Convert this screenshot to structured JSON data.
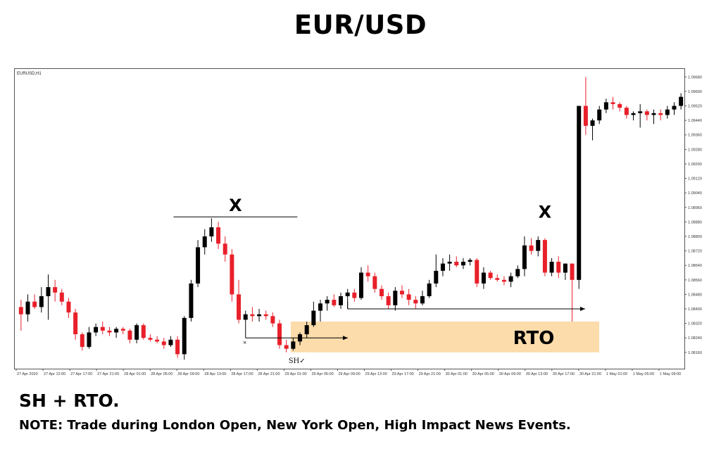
{
  "page": {
    "title": "EUR/USD",
    "heading": "SH + RTO.",
    "note": "NOTE: Trade during London Open, New York Open, High Impact News Events."
  },
  "chart_data": {
    "type": "candlestick",
    "symbol_label": "EURUSD,H1",
    "colors": {
      "bull": "#000000",
      "bear": "#e8202a",
      "zone": "#fbdcaa",
      "frame": "#555555"
    },
    "ylim": [
      1.0807,
      1.0972
    ],
    "y_ticks": [
      "1.09680",
      "1.09600",
      "1.09520",
      "1.09440",
      "1.09360",
      "1.09280",
      "1.09200",
      "1.09120",
      "1.09040",
      "1.08960",
      "1.08880",
      "1.08800",
      "1.08720",
      "1.08640",
      "1.08560",
      "1.08480",
      "1.08400",
      "1.08320",
      "1.08240",
      "1.08160"
    ],
    "x_ticks": [
      "27 Apr 2020",
      "27 Apr 12:00",
      "27 Apr 17:00",
      "27 Apr 21:00",
      "28 Apr 01:00",
      "28 Apr 05:00",
      "28 Apr 09:00",
      "28 Apr 13:00",
      "28 Apr 17:00",
      "28 Apr 21:00",
      "29 Apr 01:00",
      "29 Apr 05:00",
      "29 Apr 09:00",
      "29 Apr 13:00",
      "29 Apr 17:00",
      "29 Apr 21:00",
      "30 Apr 01:00",
      "30 Apr 05:00",
      "30 Apr 09:00",
      "30 Apr 13:00",
      "30 Apr 17:00",
      "30 Apr 21:00",
      "1 May 01:00",
      "1 May 05:00",
      "1 May 09:00"
    ],
    "candles": [
      {
        "o": 1.0841,
        "h": 1.0845,
        "l": 1.0828,
        "c": 1.0837
      },
      {
        "o": 1.0837,
        "h": 1.0848,
        "l": 1.0833,
        "c": 1.0844
      },
      {
        "o": 1.0844,
        "h": 1.0848,
        "l": 1.084,
        "c": 1.0841
      },
      {
        "o": 1.0841,
        "h": 1.0852,
        "l": 1.0838,
        "c": 1.0847
      },
      {
        "o": 1.0847,
        "h": 1.0859,
        "l": 1.0834,
        "c": 1.0852
      },
      {
        "o": 1.0852,
        "h": 1.0856,
        "l": 1.0844,
        "c": 1.0849
      },
      {
        "o": 1.0849,
        "h": 1.0851,
        "l": 1.0842,
        "c": 1.0844
      },
      {
        "o": 1.0844,
        "h": 1.0846,
        "l": 1.0835,
        "c": 1.0838
      },
      {
        "o": 1.0838,
        "h": 1.084,
        "l": 1.0823,
        "c": 1.0826
      },
      {
        "o": 1.0826,
        "h": 1.0827,
        "l": 1.0817,
        "c": 1.0819
      },
      {
        "o": 1.0819,
        "h": 1.083,
        "l": 1.0818,
        "c": 1.0827
      },
      {
        "o": 1.0827,
        "h": 1.0832,
        "l": 1.0825,
        "c": 1.083
      },
      {
        "o": 1.083,
        "h": 1.0833,
        "l": 1.0826,
        "c": 1.0828
      },
      {
        "o": 1.0828,
        "h": 1.083,
        "l": 1.0825,
        "c": 1.0827
      },
      {
        "o": 1.0827,
        "h": 1.083,
        "l": 1.0824,
        "c": 1.0829
      },
      {
        "o": 1.0829,
        "h": 1.083,
        "l": 1.0826,
        "c": 1.0828
      },
      {
        "o": 1.0828,
        "h": 1.0829,
        "l": 1.0821,
        "c": 1.0823
      },
      {
        "o": 1.0823,
        "h": 1.0832,
        "l": 1.0821,
        "c": 1.0831
      },
      {
        "o": 1.0831,
        "h": 1.0832,
        "l": 1.0823,
        "c": 1.0824
      },
      {
        "o": 1.0824,
        "h": 1.0826,
        "l": 1.0822,
        "c": 1.0823
      },
      {
        "o": 1.0823,
        "h": 1.0825,
        "l": 1.0821,
        "c": 1.0822
      },
      {
        "o": 1.0822,
        "h": 1.0824,
        "l": 1.0818,
        "c": 1.082
      },
      {
        "o": 1.082,
        "h": 1.0825,
        "l": 1.0819,
        "c": 1.0823
      },
      {
        "o": 1.0823,
        "h": 1.0825,
        "l": 1.0813,
        "c": 1.0815
      },
      {
        "o": 1.0815,
        "h": 1.0836,
        "l": 1.0812,
        "c": 1.0835
      },
      {
        "o": 1.0835,
        "h": 1.0856,
        "l": 1.0833,
        "c": 1.0854
      },
      {
        "o": 1.0854,
        "h": 1.0878,
        "l": 1.0852,
        "c": 1.0874
      },
      {
        "o": 1.0874,
        "h": 1.0884,
        "l": 1.087,
        "c": 1.088
      },
      {
        "o": 1.088,
        "h": 1.089,
        "l": 1.0877,
        "c": 1.0885
      },
      {
        "o": 1.0885,
        "h": 1.0888,
        "l": 1.0873,
        "c": 1.0876
      },
      {
        "o": 1.0876,
        "h": 1.088,
        "l": 1.0866,
        "c": 1.087
      },
      {
        "o": 1.087,
        "h": 1.0873,
        "l": 1.0844,
        "c": 1.0848
      },
      {
        "o": 1.0848,
        "h": 1.0856,
        "l": 1.0832,
        "c": 1.0834
      },
      {
        "o": 1.0834,
        "h": 1.0839,
        "l": 1.0832,
        "c": 1.0837
      },
      {
        "o": 1.0837,
        "h": 1.0841,
        "l": 1.0833,
        "c": 1.0836
      },
      {
        "o": 1.0836,
        "h": 1.084,
        "l": 1.0833,
        "c": 1.0837
      },
      {
        "o": 1.0837,
        "h": 1.0839,
        "l": 1.0834,
        "c": 1.0836
      },
      {
        "o": 1.0836,
        "h": 1.0838,
        "l": 1.083,
        "c": 1.0832
      },
      {
        "o": 1.0832,
        "h": 1.0834,
        "l": 1.0818,
        "c": 1.082
      },
      {
        "o": 1.082,
        "h": 1.0823,
        "l": 1.0816,
        "c": 1.0818
      },
      {
        "o": 1.0818,
        "h": 1.0824,
        "l": 1.0817,
        "c": 1.0822
      },
      {
        "o": 1.0822,
        "h": 1.0827,
        "l": 1.082,
        "c": 1.0826
      },
      {
        "o": 1.0826,
        "h": 1.0833,
        "l": 1.0824,
        "c": 1.0831
      },
      {
        "o": 1.0831,
        "h": 1.0844,
        "l": 1.083,
        "c": 1.0839
      },
      {
        "o": 1.0839,
        "h": 1.0845,
        "l": 1.0833,
        "c": 1.0843
      },
      {
        "o": 1.0843,
        "h": 1.0847,
        "l": 1.0839,
        "c": 1.0845
      },
      {
        "o": 1.0845,
        "h": 1.0848,
        "l": 1.0841,
        "c": 1.0842
      },
      {
        "o": 1.0842,
        "h": 1.0849,
        "l": 1.084,
        "c": 1.0847
      },
      {
        "o": 1.0847,
        "h": 1.0851,
        "l": 1.084,
        "c": 1.0849
      },
      {
        "o": 1.0849,
        "h": 1.0851,
        "l": 1.0844,
        "c": 1.0846
      },
      {
        "o": 1.0846,
        "h": 1.0863,
        "l": 1.0845,
        "c": 1.086
      },
      {
        "o": 1.086,
        "h": 1.0864,
        "l": 1.0855,
        "c": 1.0858
      },
      {
        "o": 1.0858,
        "h": 1.086,
        "l": 1.0849,
        "c": 1.0851
      },
      {
        "o": 1.0851,
        "h": 1.0853,
        "l": 1.0845,
        "c": 1.0847
      },
      {
        "o": 1.0847,
        "h": 1.0849,
        "l": 1.084,
        "c": 1.0842
      },
      {
        "o": 1.0842,
        "h": 1.0852,
        "l": 1.0839,
        "c": 1.085
      },
      {
        "o": 1.085,
        "h": 1.0853,
        "l": 1.0846,
        "c": 1.0848
      },
      {
        "o": 1.0848,
        "h": 1.0851,
        "l": 1.0842,
        "c": 1.0845
      },
      {
        "o": 1.0845,
        "h": 1.0847,
        "l": 1.084,
        "c": 1.0843
      },
      {
        "o": 1.0843,
        "h": 1.085,
        "l": 1.0842,
        "c": 1.0847
      },
      {
        "o": 1.0847,
        "h": 1.0856,
        "l": 1.0846,
        "c": 1.0854
      },
      {
        "o": 1.0854,
        "h": 1.087,
        "l": 1.0852,
        "c": 1.0861
      },
      {
        "o": 1.0861,
        "h": 1.0868,
        "l": 1.0858,
        "c": 1.0865
      },
      {
        "o": 1.0865,
        "h": 1.087,
        "l": 1.0861,
        "c": 1.0866
      },
      {
        "o": 1.0866,
        "h": 1.0869,
        "l": 1.0863,
        "c": 1.0864
      },
      {
        "o": 1.0864,
        "h": 1.0868,
        "l": 1.0862,
        "c": 1.0866
      },
      {
        "o": 1.0866,
        "h": 1.0868,
        "l": 1.0864,
        "c": 1.0867
      },
      {
        "o": 1.0867,
        "h": 1.0868,
        "l": 1.0852,
        "c": 1.0854
      },
      {
        "o": 1.0854,
        "h": 1.0863,
        "l": 1.0851,
        "c": 1.086
      },
      {
        "o": 1.086,
        "h": 1.0861,
        "l": 1.0856,
        "c": 1.0857
      },
      {
        "o": 1.0857,
        "h": 1.0859,
        "l": 1.0855,
        "c": 1.0856
      },
      {
        "o": 1.0856,
        "h": 1.0858,
        "l": 1.0853,
        "c": 1.0855
      },
      {
        "o": 1.0855,
        "h": 1.086,
        "l": 1.0852,
        "c": 1.0858
      },
      {
        "o": 1.0858,
        "h": 1.0864,
        "l": 1.0857,
        "c": 1.0862
      },
      {
        "o": 1.0862,
        "h": 1.088,
        "l": 1.0858,
        "c": 1.0875
      },
      {
        "o": 1.0875,
        "h": 1.0879,
        "l": 1.087,
        "c": 1.0872
      },
      {
        "o": 1.0872,
        "h": 1.088,
        "l": 1.0869,
        "c": 1.0878
      },
      {
        "o": 1.0878,
        "h": 1.0879,
        "l": 1.0858,
        "c": 1.086
      },
      {
        "o": 1.086,
        "h": 1.0868,
        "l": 1.0858,
        "c": 1.0866
      },
      {
        "o": 1.0866,
        "h": 1.0869,
        "l": 1.0857,
        "c": 1.086
      },
      {
        "o": 1.086,
        "h": 1.0865,
        "l": 1.0856,
        "c": 1.0865
      },
      {
        "o": 1.0865,
        "h": 1.0865,
        "l": 1.0833,
        "c": 1.0856
      },
      {
        "o": 1.0856,
        "h": 1.0952,
        "l": 1.0851,
        "c": 1.0952
      },
      {
        "o": 1.0952,
        "h": 1.0968,
        "l": 1.0936,
        "c": 1.0941
      },
      {
        "o": 1.0941,
        "h": 1.0945,
        "l": 1.0933,
        "c": 1.0944
      },
      {
        "o": 1.0944,
        "h": 1.0952,
        "l": 1.0942,
        "c": 1.095
      },
      {
        "o": 1.095,
        "h": 1.0956,
        "l": 1.0948,
        "c": 1.0954
      },
      {
        "o": 1.0954,
        "h": 1.0957,
        "l": 1.095,
        "c": 1.0953
      },
      {
        "o": 1.0953,
        "h": 1.0954,
        "l": 1.0949,
        "c": 1.0951
      },
      {
        "o": 1.0951,
        "h": 1.0952,
        "l": 1.0945,
        "c": 1.0947
      },
      {
        "o": 1.0947,
        "h": 1.0949,
        "l": 1.0944,
        "c": 1.0948
      },
      {
        "o": 1.0948,
        "h": 1.0953,
        "l": 1.094,
        "c": 1.0949
      },
      {
        "o": 1.0949,
        "h": 1.095,
        "l": 1.0944,
        "c": 1.0947
      },
      {
        "o": 1.0947,
        "h": 1.095,
        "l": 1.0942,
        "c": 1.0948
      },
      {
        "o": 1.0948,
        "h": 1.095,
        "l": 1.0944,
        "c": 1.0947
      },
      {
        "o": 1.0947,
        "h": 1.0952,
        "l": 1.0945,
        "c": 1.095
      },
      {
        "o": 1.095,
        "h": 1.0954,
        "l": 1.0947,
        "c": 1.0952
      },
      {
        "o": 1.0952,
        "h": 1.0959,
        "l": 1.095,
        "c": 1.0957
      }
    ],
    "annotations": {
      "x_left": {
        "label": "X",
        "price": 1.089
      },
      "x_right": {
        "label": "X",
        "price": 1.0884
      },
      "rto_zone": {
        "label": "RTO",
        "top": 1.0833,
        "bottom": 1.0816
      },
      "sh_label": "SH✓",
      "small_x": "×"
    }
  }
}
